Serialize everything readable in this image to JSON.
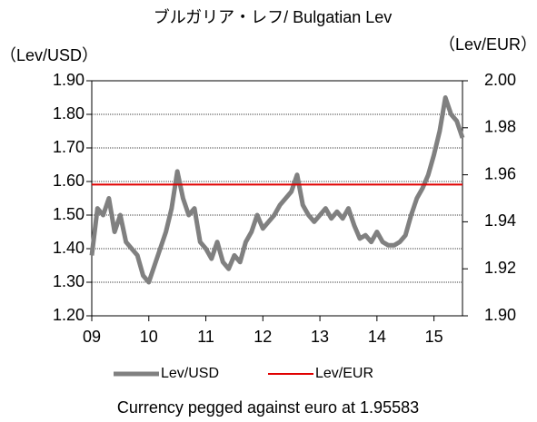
{
  "chart_data": {
    "type": "line",
    "title": "ブルガリア・レフ/ Bulgatian Lev",
    "y_label": "（Lev/USD）",
    "y2_label": "（Lev/EUR）",
    "annotation": "Currency pegged against euro at 1.95583",
    "xlim": [
      9,
      15.5
    ],
    "xticks": [
      {
        "value": 9,
        "label": "09"
      },
      {
        "value": 10,
        "label": "10"
      },
      {
        "value": 11,
        "label": "11"
      },
      {
        "value": 12,
        "label": "12"
      },
      {
        "value": 13,
        "label": "13"
      },
      {
        "value": 14,
        "label": "14"
      },
      {
        "value": 15,
        "label": "15"
      }
    ],
    "ylim": [
      1.2,
      1.9
    ],
    "yticks": [
      {
        "value": 1.2,
        "label": "1.20"
      },
      {
        "value": 1.3,
        "label": "1.30"
      },
      {
        "value": 1.4,
        "label": "1.40"
      },
      {
        "value": 1.5,
        "label": "1.50"
      },
      {
        "value": 1.6,
        "label": "1.60"
      },
      {
        "value": 1.7,
        "label": "1.70"
      },
      {
        "value": 1.8,
        "label": "1.80"
      },
      {
        "value": 1.9,
        "label": "1.90"
      }
    ],
    "y2lim": [
      1.9,
      2.0
    ],
    "y2ticks": [
      {
        "value": 1.9,
        "label": "1.90"
      },
      {
        "value": 1.92,
        "label": "1.92"
      },
      {
        "value": 1.94,
        "label": "1.94"
      },
      {
        "value": 1.96,
        "label": "1.96"
      },
      {
        "value": 1.98,
        "label": "1.98"
      },
      {
        "value": 2.0,
        "label": "2.00"
      }
    ],
    "grid": true,
    "legend": "bottom",
    "series": [
      {
        "name": "Lev/USD",
        "color": "#808080",
        "axis": "y",
        "x": [
          9.0,
          9.1,
          9.2,
          9.3,
          9.4,
          9.5,
          9.6,
          9.7,
          9.8,
          9.9,
          10.0,
          10.1,
          10.2,
          10.3,
          10.4,
          10.5,
          10.6,
          10.7,
          10.8,
          10.9,
          11.0,
          11.1,
          11.2,
          11.3,
          11.4,
          11.5,
          11.6,
          11.7,
          11.8,
          11.9,
          12.0,
          12.1,
          12.2,
          12.3,
          12.4,
          12.5,
          12.6,
          12.7,
          12.8,
          12.9,
          13.0,
          13.1,
          13.2,
          13.3,
          13.4,
          13.5,
          13.6,
          13.7,
          13.8,
          13.9,
          14.0,
          14.1,
          14.2,
          14.3,
          14.4,
          14.5,
          14.6,
          14.7,
          14.8,
          14.9,
          15.0,
          15.1,
          15.2,
          15.3,
          15.4,
          15.5
        ],
        "values": [
          1.38,
          1.52,
          1.5,
          1.55,
          1.45,
          1.5,
          1.42,
          1.4,
          1.38,
          1.32,
          1.3,
          1.35,
          1.4,
          1.45,
          1.52,
          1.63,
          1.55,
          1.5,
          1.52,
          1.42,
          1.4,
          1.37,
          1.42,
          1.36,
          1.34,
          1.38,
          1.36,
          1.42,
          1.45,
          1.5,
          1.46,
          1.48,
          1.5,
          1.53,
          1.55,
          1.57,
          1.62,
          1.53,
          1.5,
          1.48,
          1.5,
          1.52,
          1.49,
          1.51,
          1.49,
          1.52,
          1.47,
          1.43,
          1.44,
          1.42,
          1.45,
          1.42,
          1.41,
          1.41,
          1.42,
          1.44,
          1.5,
          1.55,
          1.58,
          1.62,
          1.68,
          1.75,
          1.85,
          1.8,
          1.78,
          1.73
        ]
      },
      {
        "name": "Lev/EUR",
        "color": "#e00000",
        "axis": "y2",
        "x": [
          9,
          15.5
        ],
        "values": [
          1.95583,
          1.95583
        ]
      }
    ]
  }
}
